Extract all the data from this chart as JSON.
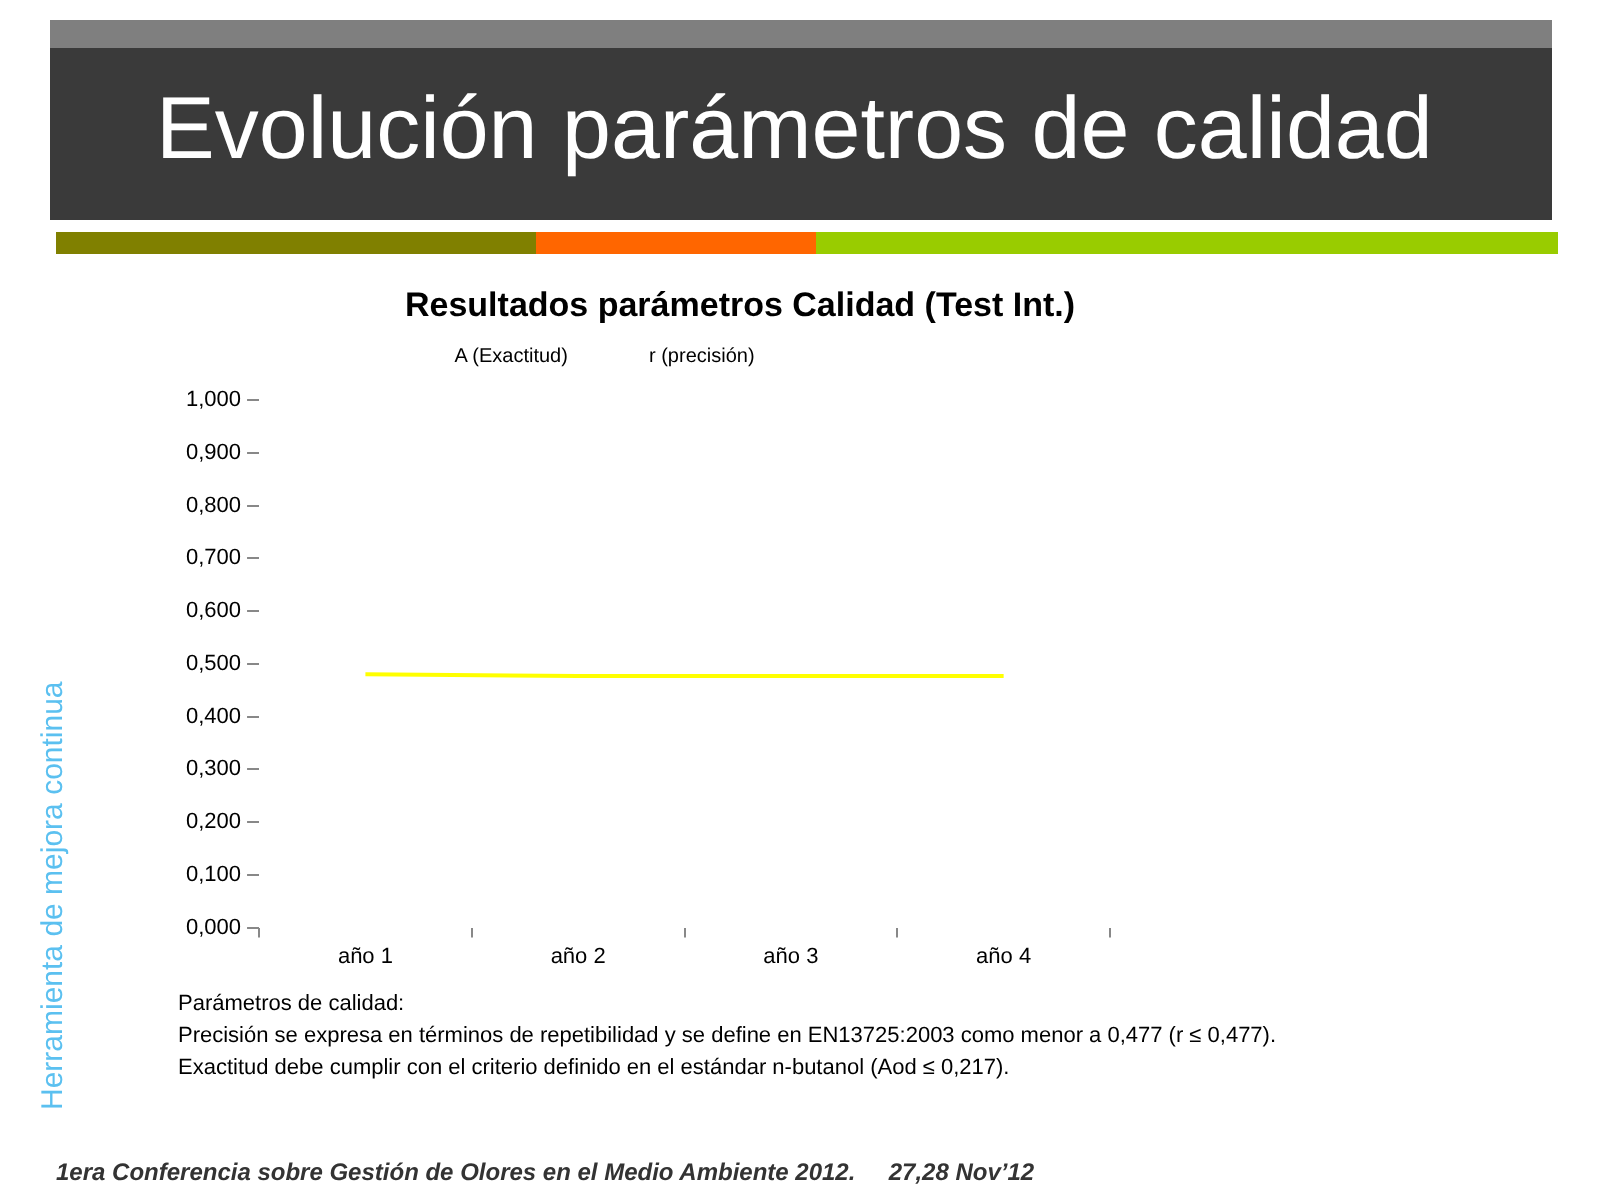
{
  "chart_data": {
    "type": "line",
    "title": "Evolución parámetros de calidad",
    "subtitle": "Resultados parámetros Calidad (Test Int.)",
    "categories": [
      "año 1",
      "año 2",
      "año 3",
      "año 4"
    ],
    "series": [
      {
        "name": "A (Exactitud)",
        "values": [
          null,
          null,
          null,
          null
        ]
      },
      {
        "name": "r (precisión)",
        "values": [
          null,
          null,
          null,
          null
        ]
      },
      {
        "color": "#ffff00",
        "values": [
          0.48,
          0.477,
          0.477,
          0.477
        ]
      }
    ],
    "ylim": [
      0,
      1
    ],
    "yticks": [
      {
        "value": 0,
        "label": "0,000"
      },
      {
        "value": 0.1,
        "label": "0,100"
      },
      {
        "value": 0.2,
        "label": "0,200"
      },
      {
        "value": 0.3,
        "label": "0,300"
      },
      {
        "value": 0.4,
        "label": "0,400"
      },
      {
        "value": 0.5,
        "label": "0,500"
      },
      {
        "value": 0.6,
        "label": "0,600"
      },
      {
        "value": 0.7,
        "label": "0,700"
      },
      {
        "value": 0.8,
        "label": "0,800"
      },
      {
        "value": 0.9,
        "label": "0,900"
      },
      {
        "value": 1,
        "label": "1,000"
      }
    ],
    "grid": false,
    "marker": "none",
    "annotations": [
      "Parámetros de calidad:",
      "Precisión se expresa en términos de repetibilidad y se define en EN13725:2003 como menor a 0,477 (r ≤ 0,477).",
      "Exactitud debe cumplir con el criterio definido en el estándar n-butanol (Aod ≤ 0,217).",
      "Herramienta de mejora continua",
      "1era Conferencia sobre Gestión de Olores en el Medio Ambiente 2012.     27,28 Nov’12"
    ]
  }
}
